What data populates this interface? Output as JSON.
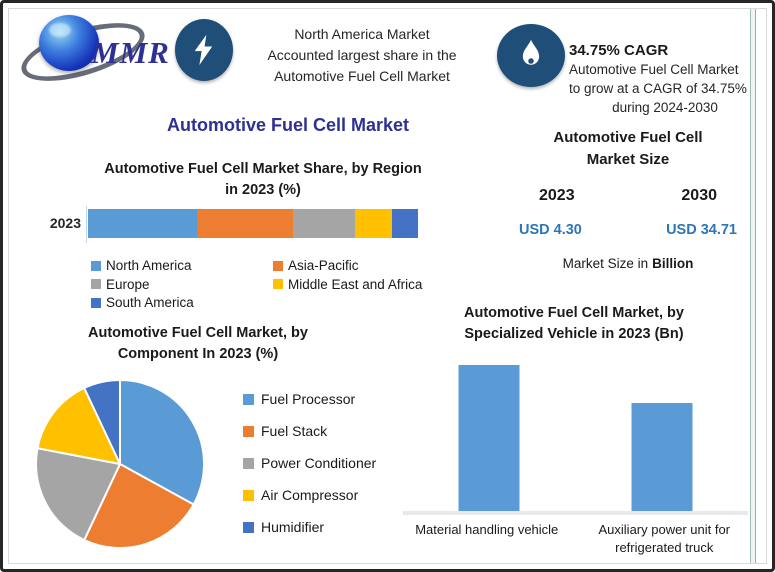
{
  "header": {
    "logo": {
      "text": "MMR"
    },
    "highlight": {
      "line1": "North America Market",
      "line2": "Accounted largest share in the",
      "line3": "Automotive Fuel Cell Market"
    },
    "cagr": {
      "headline": "34.75% CAGR",
      "line1": "Automotive Fuel Cell Market",
      "line2": "to grow at a CAGR of 34.75%",
      "line3": "during 2024-2030"
    }
  },
  "main_title": "Automotive Fuel Cell Market",
  "region_section": {
    "title_line1": "Automotive Fuel Cell Market Share, by Region",
    "title_line2": "in 2023 (%)",
    "row_label": "2023"
  },
  "market_size_panel": {
    "title_line1": "Automotive Fuel Cell",
    "title_line2": "Market Size",
    "year_left": "2023",
    "year_right": "2030",
    "value_left": "USD 4.30",
    "value_right": "USD 34.71",
    "footnote_prefix": "Market Size in",
    "footnote_bold": "Billion"
  },
  "component_section": {
    "title_line1": "Automotive Fuel Cell Market, by",
    "title_line2": "Component In 2023 (%)"
  },
  "vehicle_section": {
    "title_line1": "Automotive Fuel Cell Market, by",
    "title_line2": "Specialized Vehicle in 2023 (Bn)"
  },
  "colors": {
    "navy_title": "#2E3192",
    "usd_value_blue": "#2E75B6",
    "icon_badge_bg": "#1F4E79"
  },
  "icons": [
    "globe-logo-icon",
    "lightning-icon",
    "flame-icon"
  ],
  "chart_data": [
    {
      "id": "region_share",
      "type": "bar",
      "subtype": "stacked-horizontal",
      "title": "Automotive Fuel Cell Market Share, by Region in 2023 (%)",
      "categories": [
        "2023"
      ],
      "series": [
        {
          "name": "North America",
          "color": "#5B9BD5",
          "values": [
            33
          ]
        },
        {
          "name": "Asia-Pacific",
          "color": "#ED7D31",
          "values": [
            29
          ]
        },
        {
          "name": "Europe",
          "color": "#A5A5A5",
          "values": [
            19
          ]
        },
        {
          "name": "Middle East and Africa",
          "color": "#FFC000",
          "values": [
            11
          ]
        },
        {
          "name": "South America",
          "color": "#4472C4",
          "values": [
            8
          ]
        }
      ],
      "unit": "%",
      "legend_position": "bottom",
      "note": "segment percentages estimated from bar widths; no data labels shown"
    },
    {
      "id": "component_share",
      "type": "pie",
      "title": "Automotive Fuel Cell Market, by Component In 2023 (%)",
      "labels": [
        "Fuel Processor",
        "Fuel Stack",
        "Power Conditioner",
        "Air Compressor",
        "Humidifier"
      ],
      "values": [
        33,
        24,
        21,
        15,
        7
      ],
      "colors": [
        "#5B9BD5",
        "#ED7D31",
        "#A5A5A5",
        "#FFC000",
        "#4472C4"
      ],
      "unit": "%",
      "legend_position": "right",
      "note": "slice percentages estimated from angles; no data labels shown"
    },
    {
      "id": "specialized_vehicle",
      "type": "bar",
      "title": "Automotive Fuel Cell Market, by Specialized Vehicle in 2023 (Bn)",
      "categories": [
        "Material handling vehicle",
        "Auxiliary power unit for refrigerated truck"
      ],
      "values": [
        100,
        74
      ],
      "bar_color": "#5B9BD5",
      "unit": "relative height",
      "note": "no y-axis or data labels shown; values are relative bar heights (taller bar = 100)"
    }
  ]
}
